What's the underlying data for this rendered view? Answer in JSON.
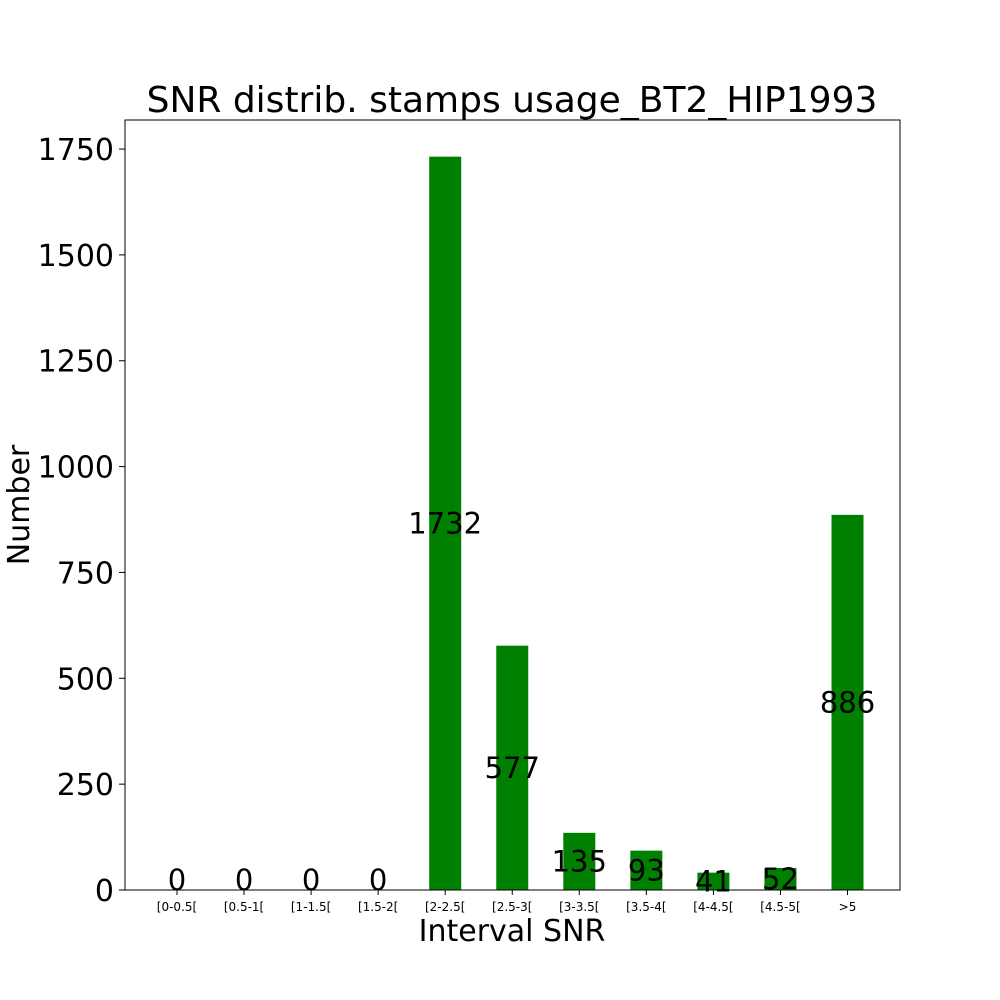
{
  "chart_data": {
    "type": "bar",
    "title": "SNR distrib. stamps usage_BT2_HIP1993",
    "xlabel": "Interval SNR",
    "ylabel": "Number",
    "categories": [
      "[0-0.5[",
      "[0.5-1[",
      "[1-1.5[",
      "[1.5-2[",
      "[2-2.5[",
      "[2.5-3[",
      "[3-3.5[",
      "[3.5-4[",
      "[4-4.5[",
      "[4.5-5[",
      ">5"
    ],
    "values": [
      0,
      0,
      0,
      0,
      1732,
      577,
      135,
      93,
      41,
      52,
      886
    ],
    "data_labels": [
      "0",
      "0",
      "0",
      "0",
      "1732",
      "577",
      "135",
      "93",
      "41",
      "52",
      "886"
    ],
    "yticks": [
      0,
      250,
      500,
      750,
      1000,
      1250,
      1500,
      1750
    ],
    "ylim": [
      0,
      1818.6
    ],
    "grid": false,
    "bar_color": "#008000"
  }
}
